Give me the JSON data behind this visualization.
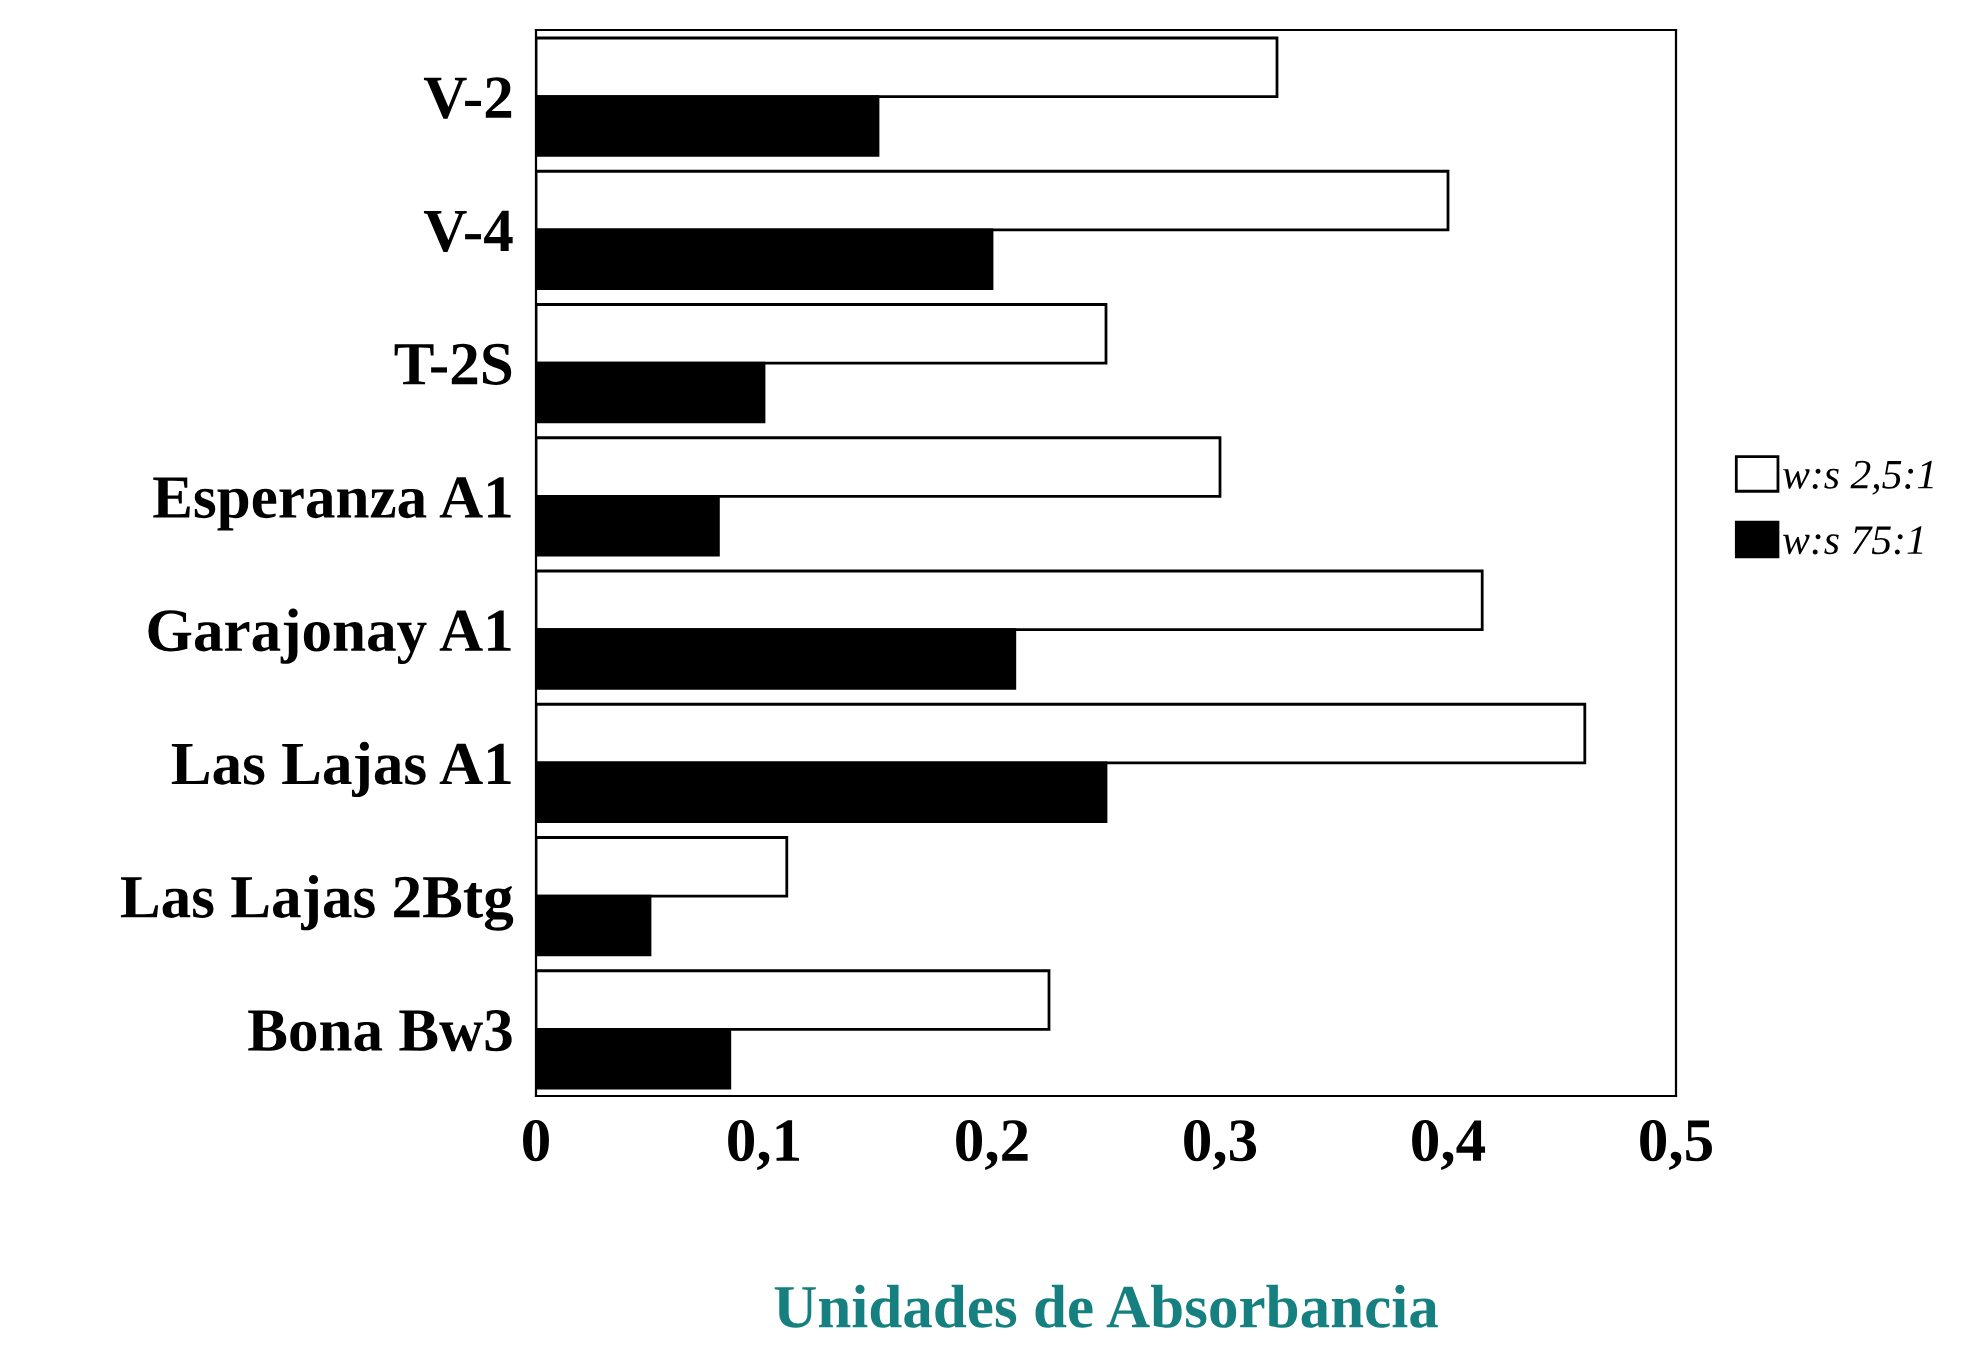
{
  "chart_data": {
    "type": "bar",
    "orientation": "horizontal",
    "xlabel": "Unidades de Absorbancia",
    "categories": [
      "V-2",
      "V-4",
      "T-2S",
      "Esperanza A1",
      "Garajonay A1",
      "Las Lajas A1",
      "Las Lajas 2Btg",
      "Bona Bw3"
    ],
    "series": [
      {
        "name": "w:s 2,5:1",
        "color": "#ffffff",
        "values": [
          0.325,
          0.4,
          0.25,
          0.3,
          0.415,
          0.46,
          0.11,
          0.225
        ]
      },
      {
        "name": "w:s 75:1",
        "color": "#000000",
        "values": [
          0.15,
          0.2,
          0.1,
          0.08,
          0.21,
          0.25,
          0.05,
          0.085
        ]
      }
    ],
    "xlim": [
      0,
      0.5
    ],
    "xticks": [
      {
        "value": 0,
        "label": "0"
      },
      {
        "value": 0.1,
        "label": "0,1"
      },
      {
        "value": 0.2,
        "label": "0,2"
      },
      {
        "value": 0.3,
        "label": "0,3"
      },
      {
        "value": 0.4,
        "label": "0,4"
      },
      {
        "value": 0.5,
        "label": "0,5"
      }
    ],
    "grid": false,
    "legend": "right"
  }
}
